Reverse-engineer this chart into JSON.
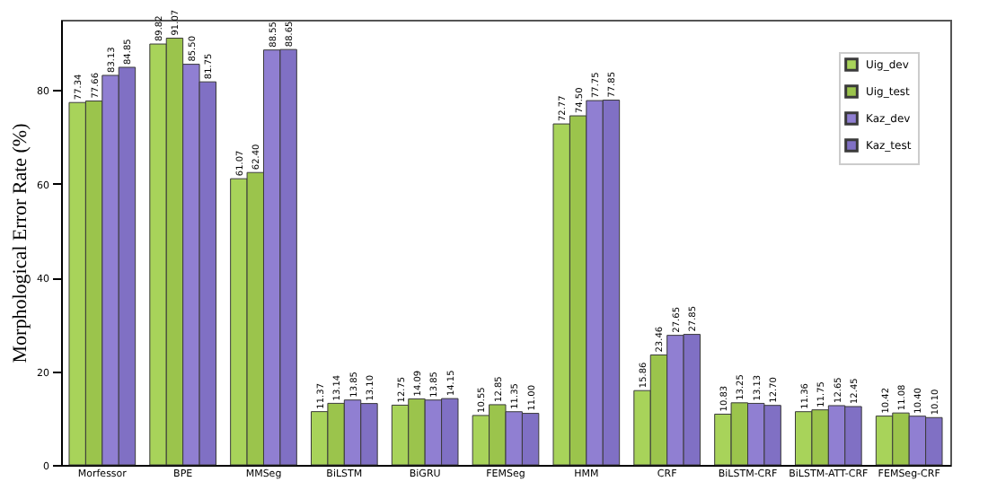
{
  "chart_data": {
    "type": "bar",
    "ylabel": "Morphological Error Rate (%)",
    "categories": [
      "Morfessor",
      "BPE",
      "MMSeg",
      "BiLSTM",
      "BiGRU",
      "FEMSeg",
      "HMM",
      "CRF",
      "BiLSTM-CRF",
      "BiLSTM-ATT-CRF",
      "FEMSeg-CRF"
    ],
    "series": [
      {
        "name": "Uig_dev",
        "color": "#a8d35a",
        "values": [
          77.34,
          89.82,
          61.07,
          11.37,
          12.75,
          10.55,
          72.77,
          15.86,
          10.83,
          11.36,
          10.42
        ],
        "value_labels": [
          "77.34",
          "89.82",
          "61.07",
          "11.37",
          "12.75",
          "10.55",
          "72.77",
          "15.86",
          "10.83",
          "11.36",
          "10.42"
        ]
      },
      {
        "name": "Uig_test",
        "color": "#9bc44c",
        "values": [
          77.66,
          91.07,
          62.4,
          13.14,
          14.09,
          12.85,
          74.5,
          23.46,
          13.25,
          11.75,
          11.08
        ],
        "value_labels": [
          "77.66",
          "91.07",
          "62.40",
          "13.14",
          "14.09",
          "12.85",
          "74.50",
          "23.46",
          "13.25",
          "11.75",
          "11.08"
        ]
      },
      {
        "name": "Kaz_dev",
        "color": "#907fd2",
        "values": [
          83.13,
          85.5,
          88.55,
          13.85,
          13.85,
          11.35,
          77.75,
          27.65,
          13.13,
          12.65,
          10.4
        ],
        "value_labels": [
          "83.13",
          "85.50",
          "88.55",
          "13.85",
          "13.85",
          "11.35",
          "77.75",
          "27.65",
          "13.13",
          "12.65",
          "10.40"
        ]
      },
      {
        "name": "Kaz_test",
        "color": "#8070c4",
        "values": [
          84.85,
          81.75,
          88.65,
          13.1,
          14.15,
          11.0,
          77.85,
          27.85,
          12.7,
          12.45,
          10.1
        ],
        "value_labels": [
          "84.85",
          "81.75",
          "88.65",
          "13.10",
          "14.15",
          "11.00",
          "77.85",
          "27.85",
          "12.70",
          "12.45",
          "10.10"
        ]
      }
    ],
    "ylim": [
      0,
      95
    ],
    "yticks": [
      0,
      20,
      40,
      60,
      80
    ],
    "legend": "top right"
  }
}
